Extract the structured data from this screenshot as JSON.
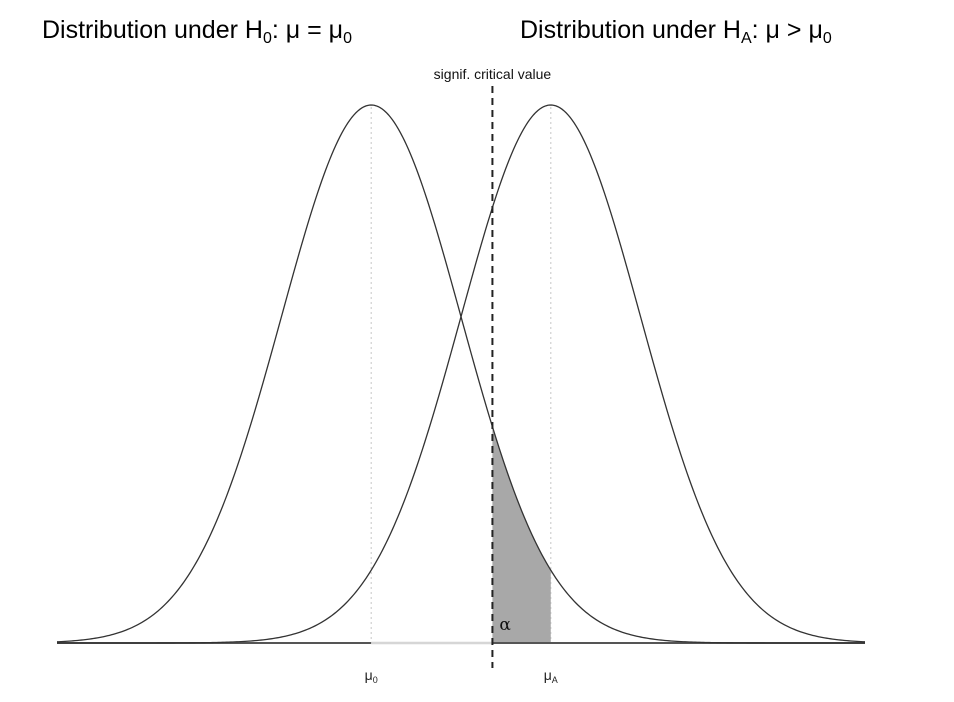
{
  "titles": {
    "left": {
      "prefix": "Distribution under ",
      "hyp_letter": "H",
      "hyp_sub": "0",
      "cond_mu": "μ",
      "operator": " = ",
      "ref_mu": "μ",
      "ref_sub": "0"
    },
    "right": {
      "prefix": "Distribution under ",
      "hyp_letter": "H",
      "hyp_sub": "A",
      "cond_mu": "μ",
      "operator": " > ",
      "ref_mu": "μ",
      "ref_sub": "0"
    }
  },
  "annotations": {
    "critical_value_label": "signif. critical value",
    "alpha_label": "α"
  },
  "chart_data": {
    "type": "area",
    "title": "",
    "xlabel": "",
    "ylabel": "",
    "grid": false,
    "legend": "none",
    "xlim": [
      -3.5,
      5.5
    ],
    "ylim": [
      0,
      0.4
    ],
    "distributions": [
      {
        "label": "H0",
        "mean": 0,
        "sd": 1
      },
      {
        "label": "HA",
        "mean": 2,
        "sd": 1
      }
    ],
    "critical_value": 1.35,
    "shaded_region": {
      "under": "H0",
      "from": 1.35,
      "to": 2.0
    },
    "x_ticks": [
      {
        "value": 0,
        "base": "μ",
        "sub": "0"
      },
      {
        "value": 2,
        "base": "μ",
        "sub": "A"
      }
    ],
    "colors": {
      "curve": "#333333",
      "shade": "#a8a8a8",
      "baseline": "#555555",
      "baseline_light": "#d6d6d6",
      "guide": "#d0d0d0",
      "critical": "#222222"
    }
  }
}
